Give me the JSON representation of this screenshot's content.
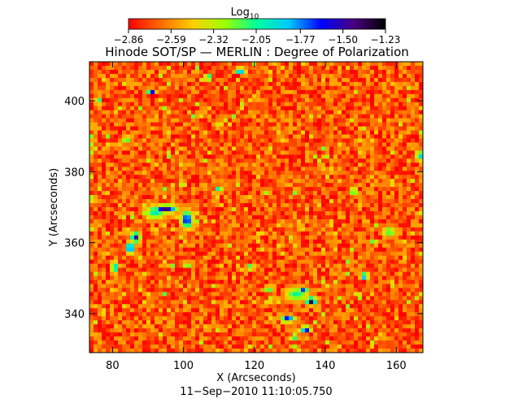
{
  "chart_data": {
    "type": "heatmap",
    "title": "Hinode SOT/SP — MERLIN : Degree of Polarization",
    "subtitle": "11−Sep−2010 11:10:05.750",
    "xlabel": "X (Arcseconds)",
    "ylabel": "Y (Arcseconds)",
    "xlim": [
      73.5,
      167.5
    ],
    "ylim": [
      329,
      411
    ],
    "x_ticks": [
      80,
      100,
      120,
      140,
      160
    ],
    "y_ticks": [
      340,
      360,
      380,
      400
    ],
    "x_tick_labels": [
      "80",
      "100",
      "120",
      "140",
      "160"
    ],
    "y_tick_labels": [
      "340",
      "360",
      "380",
      "400"
    ],
    "grid": false,
    "colorbar": {
      "label": "Log",
      "label_sub": "10",
      "scale": "log10",
      "range": [
        -2.86,
        -1.23
      ],
      "tick_values": [
        -2.86,
        -2.59,
        -2.32,
        -2.05,
        -1.77,
        -1.5,
        -1.23
      ],
      "tick_labels": [
        "−2.86",
        "−2.59",
        "−2.32",
        "−2.05",
        "−1.77",
        "−1.50",
        "−1.23"
      ],
      "colors": [
        "#ff0000",
        "#ff6a00",
        "#ffd000",
        "#9bff00",
        "#00ff9b",
        "#00c8ff",
        "#0000ff",
        "#4b0082",
        "#000000"
      ]
    },
    "background_level": -2.7,
    "features": [
      {
        "x": 95,
        "y": 369.5,
        "rx": 3.5,
        "ry": 1.2,
        "level": -1.4
      },
      {
        "x": 101,
        "y": 366.5,
        "rx": 1.8,
        "ry": 2.6,
        "level": -1.55
      },
      {
        "x": 92,
        "y": 368.5,
        "rx": 3.0,
        "ry": 2.2,
        "level": -1.95
      },
      {
        "x": 86.5,
        "y": 361.5,
        "rx": 1.5,
        "ry": 1.5,
        "level": -1.45
      },
      {
        "x": 85,
        "y": 358.5,
        "rx": 1.2,
        "ry": 1.8,
        "level": -1.5
      },
      {
        "x": 80.5,
        "y": 353,
        "rx": 0.8,
        "ry": 2.0,
        "level": -1.6
      },
      {
        "x": 136,
        "y": 343.5,
        "rx": 1.6,
        "ry": 1.2,
        "level": -1.3
      },
      {
        "x": 134,
        "y": 346.5,
        "rx": 1.2,
        "ry": 1.0,
        "level": -1.6
      },
      {
        "x": 132,
        "y": 345.5,
        "rx": 3.5,
        "ry": 2.2,
        "level": -2.0
      },
      {
        "x": 129.5,
        "y": 338.5,
        "rx": 2.2,
        "ry": 1.0,
        "level": -1.6
      },
      {
        "x": 134.5,
        "y": 335.5,
        "rx": 1.6,
        "ry": 1.0,
        "level": -1.5
      },
      {
        "x": 131.5,
        "y": 333.5,
        "rx": 1.0,
        "ry": 0.8,
        "level": -1.7
      },
      {
        "x": 151,
        "y": 350.5,
        "rx": 1.2,
        "ry": 1.0,
        "level": -1.6
      },
      {
        "x": 148,
        "y": 374.5,
        "rx": 0.8,
        "ry": 1.0,
        "level": -1.5
      },
      {
        "x": 166.5,
        "y": 384.5,
        "rx": 0.8,
        "ry": 1.5,
        "level": -1.5
      },
      {
        "x": 91,
        "y": 402.5,
        "rx": 1.2,
        "ry": 0.8,
        "level": -1.6
      },
      {
        "x": 107,
        "y": 406.5,
        "rx": 1.0,
        "ry": 0.8,
        "level": -1.55
      },
      {
        "x": 116,
        "y": 408.5,
        "rx": 1.6,
        "ry": 0.8,
        "level": -1.5
      },
      {
        "x": 110,
        "y": 375,
        "rx": 1.0,
        "ry": 1.0,
        "level": -1.9
      },
      {
        "x": 119,
        "y": 353,
        "rx": 1.0,
        "ry": 0.8,
        "level": -1.8
      },
      {
        "x": 124,
        "y": 347,
        "rx": 1.0,
        "ry": 0.8,
        "level": -1.7
      },
      {
        "x": 158,
        "y": 363,
        "rx": 2.0,
        "ry": 1.5,
        "level": -2.05
      },
      {
        "x": 76,
        "y": 400,
        "rx": 1.0,
        "ry": 1.2,
        "level": -2.0
      },
      {
        "x": 84,
        "y": 389,
        "rx": 1.5,
        "ry": 1.0,
        "level": -2.1
      }
    ]
  }
}
